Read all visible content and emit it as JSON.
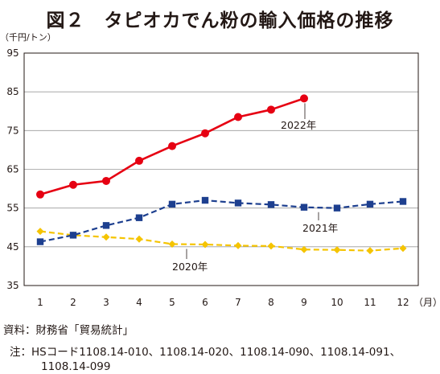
{
  "title": "図２　タピオカでん粉の輸入価格の推移",
  "source": "資料：財務省「貿易統計」",
  "note_line1": "注：HSコード1108.14-010、1108.14-020、1108.14-090、1108.14-091、",
  "note_line2": "1108.14-099",
  "chart_data": {
    "type": "line",
    "title": "図２　タピオカでん粉の輸入価格の推移",
    "ylabel": "（千円/トン）",
    "xlabel": "（月）",
    "ylim": [
      35,
      95
    ],
    "yticks": [
      35,
      45,
      55,
      65,
      75,
      85,
      95
    ],
    "categories": [
      "1",
      "2",
      "3",
      "4",
      "5",
      "6",
      "7",
      "8",
      "9",
      "10",
      "11",
      "12"
    ],
    "grid": true,
    "series": [
      {
        "name": "2022年",
        "color": "#e60012",
        "style": "solid",
        "marker": "circle",
        "values": [
          58.5,
          61.0,
          62.0,
          67.2,
          71.0,
          74.3,
          78.5,
          80.4,
          83.3,
          null,
          null,
          null
        ]
      },
      {
        "name": "2021年",
        "color": "#1d3f8f",
        "style": "dashed",
        "marker": "square",
        "values": [
          46.3,
          48.0,
          50.5,
          52.5,
          56.0,
          57.0,
          56.3,
          55.9,
          55.2,
          55.0,
          56.0,
          56.7
        ]
      },
      {
        "name": "2020年",
        "color": "#f5c400",
        "style": "dashed",
        "marker": "diamond",
        "values": [
          49.0,
          48.0,
          47.5,
          47.0,
          45.7,
          45.6,
          45.3,
          45.2,
          44.3,
          44.2,
          44.0,
          44.6
        ]
      }
    ]
  }
}
